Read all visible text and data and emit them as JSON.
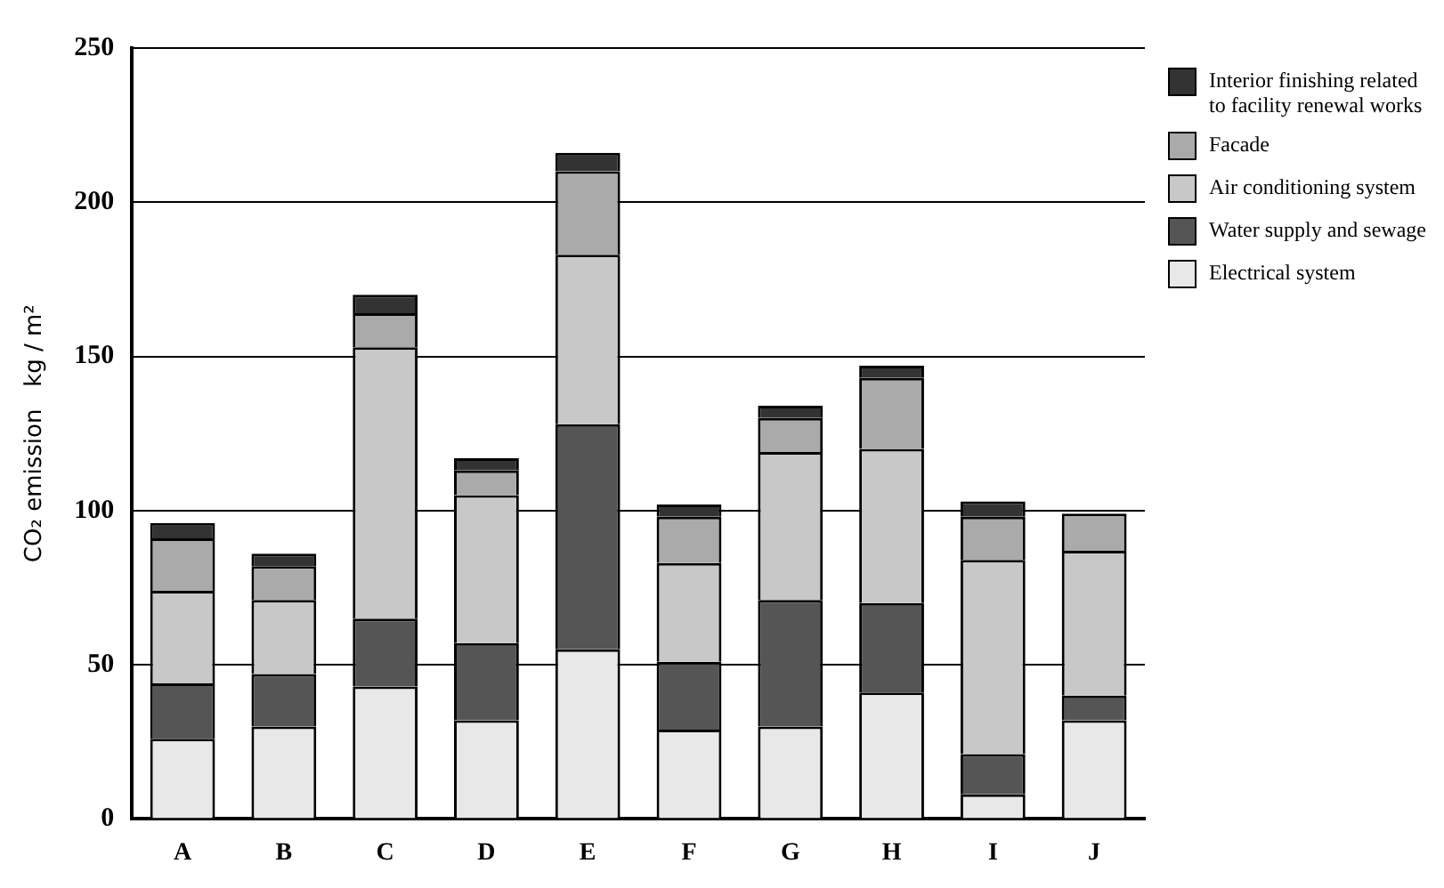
{
  "chart_data": {
    "type": "bar",
    "stacked": true,
    "ylabel": "CO₂ emission   kg / m²",
    "categories": [
      "A",
      "B",
      "C",
      "D",
      "E",
      "F",
      "G",
      "H",
      "I",
      "J"
    ],
    "series": [
      {
        "name": "Electrical system",
        "color": "#e8e8e8",
        "values": [
          26,
          30,
          43,
          32,
          55,
          29,
          30,
          41,
          8,
          32
        ]
      },
      {
        "name": "Water supply and sewage",
        "color": "#555555",
        "values": [
          18,
          17,
          22,
          25,
          73,
          22,
          41,
          29,
          13,
          8
        ]
      },
      {
        "name": "Air conditioning system",
        "color": "#c8c8c8",
        "values": [
          30,
          24,
          88,
          48,
          55,
          32,
          48,
          50,
          63,
          47
        ]
      },
      {
        "name": "Facade",
        "color": "#aaaaaa",
        "values": [
          17,
          11,
          11,
          8,
          27,
          15,
          11,
          23,
          14,
          12
        ]
      },
      {
        "name": "Interior finishing related to facility renewal works",
        "color": "#333333",
        "values": [
          5,
          4,
          6,
          4,
          6,
          4,
          4,
          4,
          5,
          0
        ]
      }
    ],
    "ylim": [
      0,
      250
    ],
    "yticks": [
      0,
      50,
      100,
      150,
      200,
      250
    ],
    "grid": "y",
    "legend": "top right"
  }
}
